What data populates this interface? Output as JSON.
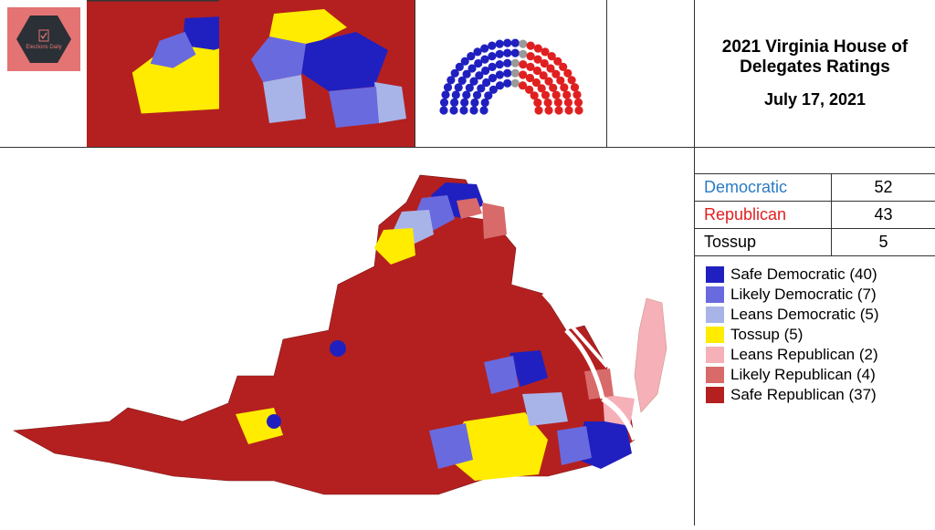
{
  "title": {
    "line1": "2021 Virginia House of",
    "line2": "Delegates Ratings",
    "date": "July 17, 2021"
  },
  "logo": {
    "text": "Elections Daily"
  },
  "summary": [
    {
      "label": "Democratic",
      "value": 52,
      "class": "dem-label"
    },
    {
      "label": "Republican",
      "value": 43,
      "class": "rep-label"
    },
    {
      "label": "Tossup",
      "value": 5,
      "class": ""
    }
  ],
  "legend": [
    {
      "label": "Safe Democratic (40)",
      "color": "#2020c0"
    },
    {
      "label": "Likely Democratic (7)",
      "color": "#6a6adf"
    },
    {
      "label": "Leans Democratic (5)",
      "color": "#a8b4e8"
    },
    {
      "label": "Tossup (5)",
      "color": "#ffec00"
    },
    {
      "label": "Leans Republican (2)",
      "color": "#f5b0b8"
    },
    {
      "label": "Likely Republican (4)",
      "color": "#d86a6a"
    },
    {
      "label": "Safe Republican (37)",
      "color": "#b42020"
    }
  ],
  "seats": {
    "dem": 52,
    "rep": 43,
    "tossup": 5,
    "dem_color": "#2020c0",
    "rep_color": "#e02020",
    "tossup_color": "#9a9a9a"
  },
  "colors": {
    "safe_r": "#b42020",
    "likely_r": "#d86a6a",
    "leans_r": "#f5b0b8",
    "tossup": "#ffec00",
    "leans_d": "#a8b4e8",
    "likely_d": "#6a6adf",
    "safe_d": "#2020c0",
    "water": "#ffffff",
    "border": "#333333"
  }
}
